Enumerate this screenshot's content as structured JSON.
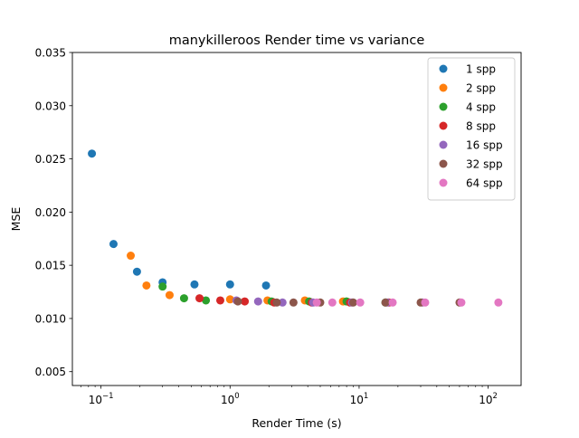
{
  "chart_data": {
    "type": "scatter",
    "title": "manykilleroos Render time vs variance",
    "xlabel": "Render Time (s)",
    "ylabel": "MSE",
    "xscale": "log",
    "xlim": [
      0.06,
      180
    ],
    "ylim": [
      0.0037,
      0.035
    ],
    "x_ticks": [
      {
        "value": 0.1,
        "base": "10",
        "exp": "−1"
      },
      {
        "value": 1,
        "base": "10",
        "exp": "0"
      },
      {
        "value": 10,
        "base": "10",
        "exp": "1"
      },
      {
        "value": 100,
        "base": "10",
        "exp": "2"
      }
    ],
    "y_ticks": [
      {
        "value": 0.005,
        "label": "0.005"
      },
      {
        "value": 0.01,
        "label": "0.010"
      },
      {
        "value": 0.015,
        "label": "0.015"
      },
      {
        "value": 0.02,
        "label": "0.020"
      },
      {
        "value": 0.025,
        "label": "0.025"
      },
      {
        "value": 0.03,
        "label": "0.030"
      },
      {
        "value": 0.035,
        "label": "0.035"
      }
    ],
    "grid": false,
    "legend_position": "top-right",
    "series": [
      {
        "name": "1 spp",
        "color": "#1f77b4",
        "points": [
          [
            0.085,
            0.0255
          ],
          [
            0.125,
            0.017
          ],
          [
            0.19,
            0.0144
          ],
          [
            0.3,
            0.0134
          ],
          [
            0.53,
            0.0132
          ],
          [
            1.0,
            0.0132
          ],
          [
            1.9,
            0.0131
          ]
        ]
      },
      {
        "name": "2 spp",
        "color": "#ff7f0e",
        "points": [
          [
            0.17,
            0.0159
          ],
          [
            0.225,
            0.0131
          ],
          [
            0.34,
            0.0122
          ],
          [
            1.0,
            0.0118
          ],
          [
            1.95,
            0.0117
          ],
          [
            3.8,
            0.0117
          ],
          [
            7.5,
            0.0116
          ]
        ]
      },
      {
        "name": "4 spp",
        "color": "#2ca02c",
        "points": [
          [
            0.3,
            0.013
          ],
          [
            0.44,
            0.0119
          ],
          [
            0.65,
            0.0117
          ],
          [
            2.1,
            0.0116
          ],
          [
            4.1,
            0.0116
          ],
          [
            8.0,
            0.0116
          ],
          [
            16.0,
            0.0115
          ]
        ]
      },
      {
        "name": "8 spp",
        "color": "#d62728",
        "points": [
          [
            0.58,
            0.0119
          ],
          [
            0.84,
            0.0117
          ],
          [
            1.3,
            0.0116
          ],
          [
            2.2,
            0.0115
          ],
          [
            4.3,
            0.0115
          ],
          [
            8.5,
            0.0115
          ],
          [
            17.0,
            0.0115
          ]
        ]
      },
      {
        "name": "16 spp",
        "color": "#9467bd",
        "points": [
          [
            1.12,
            0.0117
          ],
          [
            1.65,
            0.0116
          ],
          [
            2.55,
            0.0115
          ],
          [
            4.4,
            0.0115
          ],
          [
            8.8,
            0.0115
          ],
          [
            16.5,
            0.0115
          ],
          [
            31.0,
            0.0115
          ]
        ]
      },
      {
        "name": "32 spp",
        "color": "#8c564b",
        "points": [
          [
            1.15,
            0.0116
          ],
          [
            2.3,
            0.0115
          ],
          [
            3.1,
            0.0115
          ],
          [
            5.0,
            0.0115
          ],
          [
            9.0,
            0.0115
          ],
          [
            16.0,
            0.0115
          ],
          [
            30.0,
            0.0115
          ],
          [
            60.0,
            0.0115
          ]
        ]
      },
      {
        "name": "64 spp",
        "color": "#e377c2",
        "points": [
          [
            4.7,
            0.0115
          ],
          [
            6.2,
            0.0115
          ],
          [
            10.2,
            0.0115
          ],
          [
            18.2,
            0.0115
          ],
          [
            32.5,
            0.0115
          ],
          [
            62.0,
            0.0115
          ],
          [
            120.0,
            0.0115
          ]
        ]
      }
    ]
  }
}
